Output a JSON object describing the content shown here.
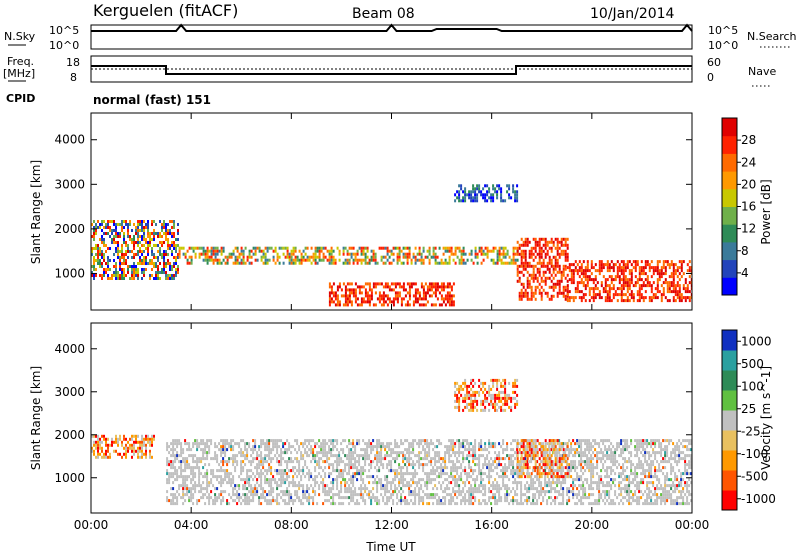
{
  "header": {
    "station": "Kerguelen (fitACF)",
    "beam": "Beam 08",
    "date": "10/Jan/2014"
  },
  "top_panels": {
    "nsky_label": "N.Sky",
    "nsky_ticks": [
      "10^5",
      "10^0"
    ],
    "nsearch_label": "N.Search",
    "freq_label_1": "Freq.",
    "freq_label_2": "[MHz]",
    "freq_ticks": [
      "18",
      "8"
    ],
    "nave_label": "Nave",
    "nave_ticks": [
      "60",
      "0"
    ],
    "cpid_label": "CPID",
    "cpid_value": "normal (fast) 151"
  },
  "chart_data": [
    {
      "type": "heatmap",
      "title": "",
      "quantity": "Power",
      "xlabel": "Time UT",
      "ylabel": "Slant Range [km]",
      "colorbar_label": "Power [dB]",
      "x_ticks": [
        "00:00",
        "04:00",
        "08:00",
        "12:00",
        "16:00",
        "20:00",
        "00:00"
      ],
      "y_ticks": [
        1000,
        2000,
        3000,
        4000
      ],
      "xlim_hours": [
        0,
        24
      ],
      "ylim_km": [
        180,
        4600
      ],
      "colorbar_ticks": [
        "4",
        "8",
        "12",
        "16",
        "20",
        "24",
        "28"
      ],
      "colorscale": [
        "#0000ff",
        "#2244bb",
        "#3a7a9a",
        "#2e8b57",
        "#6fb04a",
        "#c8c800",
        "#ff9900",
        "#ff6a00",
        "#ff2200",
        "#e00000"
      ],
      "features": [
        {
          "time_start": 0.0,
          "time_end": 3.5,
          "range_min": 900,
          "range_max": 2200,
          "level": "mixed"
        },
        {
          "time_start": 3.5,
          "time_end": 17.0,
          "range_min": 1200,
          "range_max": 1600,
          "level": "medium"
        },
        {
          "time_start": 9.5,
          "time_end": 14.5,
          "range_min": 300,
          "range_max": 800,
          "level": "high"
        },
        {
          "time_start": 14.5,
          "time_end": 17.0,
          "range_min": 2600,
          "range_max": 3000,
          "level": "low"
        },
        {
          "time_start": 17.0,
          "time_end": 19.0,
          "range_min": 400,
          "range_max": 1800,
          "level": "high"
        },
        {
          "time_start": 19.0,
          "time_end": 24.0,
          "range_min": 400,
          "range_max": 1300,
          "level": "high"
        }
      ]
    },
    {
      "type": "heatmap",
      "title": "",
      "quantity": "Velocity",
      "xlabel": "Time UT",
      "ylabel": "Slant Range [km]",
      "colorbar_label": "Velocity [m s^-1]",
      "x_ticks": [
        "00:00",
        "04:00",
        "08:00",
        "12:00",
        "16:00",
        "20:00",
        "00:00"
      ],
      "y_ticks": [
        1000,
        2000,
        3000,
        4000
      ],
      "xlim_hours": [
        0,
        24
      ],
      "ylim_km": [
        180,
        4600
      ],
      "colorbar_ticks": [
        "1000",
        "500",
        "100",
        "25",
        "-25",
        "-100",
        "-500",
        "-1000"
      ],
      "colorscale": [
        "#1030c0",
        "#2aa0a0",
        "#2e8b57",
        "#60c040",
        "#c0c0c0",
        "#e8c060",
        "#ff9900",
        "#ff5500",
        "#ff0000"
      ],
      "features": [
        {
          "time_start": 0.0,
          "time_end": 2.5,
          "range_min": 1500,
          "range_max": 2000,
          "level": "negative"
        },
        {
          "time_start": 3.0,
          "time_end": 24.0,
          "range_min": 400,
          "range_max": 1900,
          "level": "ground"
        },
        {
          "time_start": 14.5,
          "time_end": 17.0,
          "range_min": 2600,
          "range_max": 3300,
          "level": "negative"
        },
        {
          "time_start": 17.0,
          "time_end": 19.0,
          "range_min": 1000,
          "range_max": 1900,
          "level": "negative"
        }
      ]
    }
  ]
}
